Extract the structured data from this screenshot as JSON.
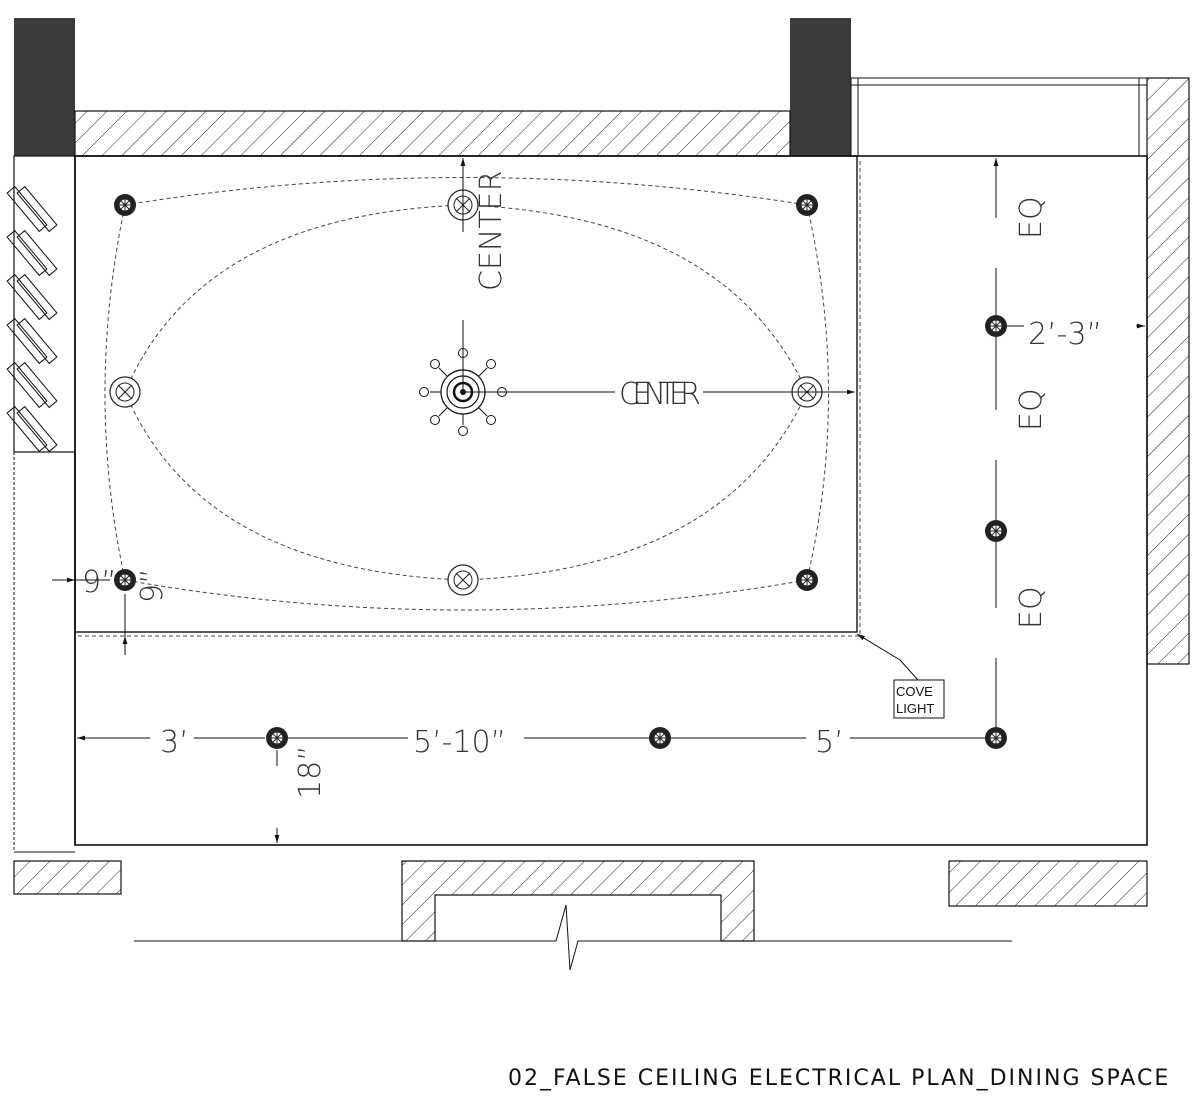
{
  "title": "02_FALSE CEILING ELECTRICAL PLAN_DINING SPACE",
  "labels": {
    "center_vertical": "CENTER",
    "center_horizontal": "CENTER",
    "cove_line1": "COVE",
    "cove_line2": "LIGHT"
  },
  "dimensions": {
    "d_3ft": "3’",
    "d_5ft10": "5’-10”",
    "d_5ft": "5’",
    "d_18in": "18”",
    "d_2ft3": "2’-3”",
    "d_9in_h": "9”",
    "d_9in_v": "9”",
    "eq_top": "EQ",
    "eq_mid": "EQ",
    "eq_bot": "EQ"
  },
  "colors": {
    "line": "#111111",
    "column": "#3a3a3a",
    "background": "#ffffff"
  }
}
